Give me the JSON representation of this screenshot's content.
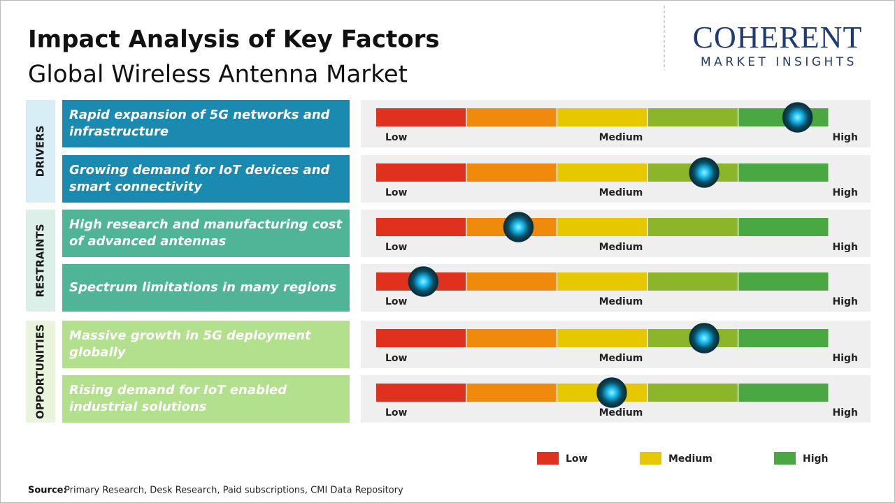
{
  "header": {
    "title": "Impact Analysis of Key Factors",
    "subtitle": "Global Wireless Antenna Market"
  },
  "logo": {
    "name": "COHERENT",
    "tagline": "MARKET INSIGHTS"
  },
  "scale": {
    "colors": [
      "#e0301e",
      "#ef8a0c",
      "#e6c800",
      "#8db52a",
      "#4aa842"
    ],
    "labels": [
      "Low",
      "Medium",
      "High"
    ]
  },
  "groups": [
    {
      "name": "DRIVERS",
      "band_color": "#d8eef7",
      "box_color": "#1a8ab0",
      "factors": [
        {
          "text": "Rapid expansion of 5G networks and infrastructure",
          "impact": 4.65
        },
        {
          "text": "Growing demand for IoT devices and smart connectivity",
          "impact": 3.62
        }
      ]
    },
    {
      "name": "RESTRAINTS",
      "band_color": "#dcefe9",
      "box_color": "#4fb596",
      "factors": [
        {
          "text": "High research and manufacturing cost of advanced antennas",
          "impact": 1.57
        },
        {
          "text": "Spectrum limitations in many regions",
          "impact": 0.52
        }
      ]
    },
    {
      "name": "OPPORTUNITIES",
      "band_color": "#e8f5dc",
      "box_color": "#b3e08c",
      "factors": [
        {
          "text": "Massive growth in 5G deployment globally",
          "impact": 3.62
        },
        {
          "text": "Rising demand for IoT enabled industrial solutions",
          "impact": 2.6
        }
      ]
    }
  ],
  "legend": [
    {
      "label": "Low",
      "color": "#e0301e"
    },
    {
      "label": "Medium",
      "color": "#e6c800"
    },
    {
      "label": "High",
      "color": "#4aa842"
    }
  ],
  "source": {
    "label": "Source:",
    "text": "Primary Research, Desk Research, Paid subscriptions, CMI Data Repository"
  }
}
